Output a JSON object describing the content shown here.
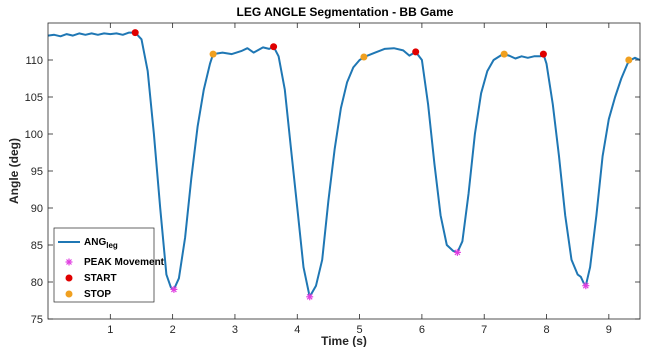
{
  "chart_data": {
    "type": "line",
    "title": "LEG ANGLE Segmentation - BB Game",
    "xlabel": "Time (s)",
    "ylabel": "Angle (deg)",
    "xlim": [
      0,
      9.5
    ],
    "ylim": [
      75,
      115
    ],
    "xticks": [
      1,
      2,
      3,
      4,
      5,
      6,
      7,
      8,
      9
    ],
    "yticks": [
      75,
      80,
      85,
      90,
      95,
      100,
      105,
      110
    ],
    "grid": false,
    "legend_position": "bottom-left",
    "series": [
      {
        "name": "ANG",
        "name_subscript": "leg",
        "color": "#1f77b4",
        "points": [
          [
            0.0,
            113.3
          ],
          [
            0.1,
            113.4
          ],
          [
            0.2,
            113.2
          ],
          [
            0.3,
            113.5
          ],
          [
            0.4,
            113.3
          ],
          [
            0.5,
            113.6
          ],
          [
            0.6,
            113.4
          ],
          [
            0.7,
            113.6
          ],
          [
            0.8,
            113.4
          ],
          [
            0.9,
            113.6
          ],
          [
            1.0,
            113.5
          ],
          [
            1.1,
            113.6
          ],
          [
            1.2,
            113.4
          ],
          [
            1.3,
            113.7
          ],
          [
            1.4,
            113.7
          ],
          [
            1.5,
            112.8
          ],
          [
            1.6,
            108.5
          ],
          [
            1.7,
            100.0
          ],
          [
            1.8,
            90.0
          ],
          [
            1.9,
            81.0
          ],
          [
            1.97,
            79.3
          ],
          [
            2.02,
            79.0
          ],
          [
            2.1,
            80.5
          ],
          [
            2.2,
            86.0
          ],
          [
            2.3,
            94.0
          ],
          [
            2.4,
            101.0
          ],
          [
            2.5,
            106.0
          ],
          [
            2.6,
            109.5
          ],
          [
            2.65,
            110.8
          ],
          [
            2.8,
            111.0
          ],
          [
            2.95,
            110.8
          ],
          [
            3.1,
            111.2
          ],
          [
            3.2,
            111.6
          ],
          [
            3.3,
            111.0
          ],
          [
            3.45,
            111.7
          ],
          [
            3.55,
            111.5
          ],
          [
            3.62,
            111.8
          ],
          [
            3.7,
            110.5
          ],
          [
            3.8,
            106.0
          ],
          [
            3.9,
            98.0
          ],
          [
            4.0,
            90.0
          ],
          [
            4.1,
            82.0
          ],
          [
            4.2,
            78.0
          ],
          [
            4.3,
            79.5
          ],
          [
            4.4,
            83.0
          ],
          [
            4.5,
            91.0
          ],
          [
            4.6,
            98.0
          ],
          [
            4.7,
            103.5
          ],
          [
            4.8,
            107.0
          ],
          [
            4.9,
            109.0
          ],
          [
            5.0,
            110.0
          ],
          [
            5.1,
            110.5
          ],
          [
            5.25,
            111.0
          ],
          [
            5.4,
            111.5
          ],
          [
            5.55,
            111.6
          ],
          [
            5.7,
            111.3
          ],
          [
            5.8,
            110.6
          ],
          [
            5.9,
            111.1
          ],
          [
            6.0,
            110.0
          ],
          [
            6.1,
            104.0
          ],
          [
            6.2,
            96.0
          ],
          [
            6.3,
            89.0
          ],
          [
            6.4,
            85.0
          ],
          [
            6.5,
            84.2
          ],
          [
            6.57,
            84.0
          ],
          [
            6.65,
            85.5
          ],
          [
            6.75,
            92.0
          ],
          [
            6.85,
            100.0
          ],
          [
            6.95,
            105.5
          ],
          [
            7.05,
            108.5
          ],
          [
            7.15,
            110.0
          ],
          [
            7.3,
            110.8
          ],
          [
            7.4,
            110.6
          ],
          [
            7.5,
            110.2
          ],
          [
            7.6,
            110.5
          ],
          [
            7.7,
            110.3
          ],
          [
            7.8,
            110.5
          ],
          [
            7.9,
            110.5
          ],
          [
            7.95,
            110.8
          ],
          [
            8.0,
            109.5
          ],
          [
            8.1,
            104.0
          ],
          [
            8.2,
            97.0
          ],
          [
            8.3,
            89.0
          ],
          [
            8.4,
            83.0
          ],
          [
            8.5,
            81.0
          ],
          [
            8.55,
            80.7
          ],
          [
            8.6,
            79.8
          ],
          [
            8.63,
            79.5
          ],
          [
            8.7,
            82.0
          ],
          [
            8.8,
            89.0
          ],
          [
            8.9,
            97.0
          ],
          [
            9.0,
            102.0
          ],
          [
            9.1,
            105.0
          ],
          [
            9.2,
            107.5
          ],
          [
            9.3,
            109.5
          ],
          [
            9.35,
            110.0
          ],
          [
            9.42,
            110.3
          ],
          [
            9.5,
            110.0
          ]
        ]
      },
      {
        "name": "PEAK Movement",
        "color": "#e040e0",
        "marker": "asterisk",
        "points": [
          [
            2.02,
            79.0
          ],
          [
            4.2,
            78.0
          ],
          [
            6.57,
            84.0
          ],
          [
            8.63,
            79.5
          ]
        ]
      },
      {
        "name": "START",
        "color": "#e00000",
        "marker": "circle",
        "points": [
          [
            1.4,
            113.7
          ],
          [
            3.62,
            111.8
          ],
          [
            5.9,
            111.1
          ],
          [
            7.95,
            110.8
          ]
        ]
      },
      {
        "name": "STOP",
        "color": "#f0a020",
        "marker": "circle",
        "points": [
          [
            2.65,
            110.8
          ],
          [
            5.07,
            110.4
          ],
          [
            7.32,
            110.8
          ],
          [
            9.32,
            110.0
          ]
        ]
      }
    ]
  }
}
